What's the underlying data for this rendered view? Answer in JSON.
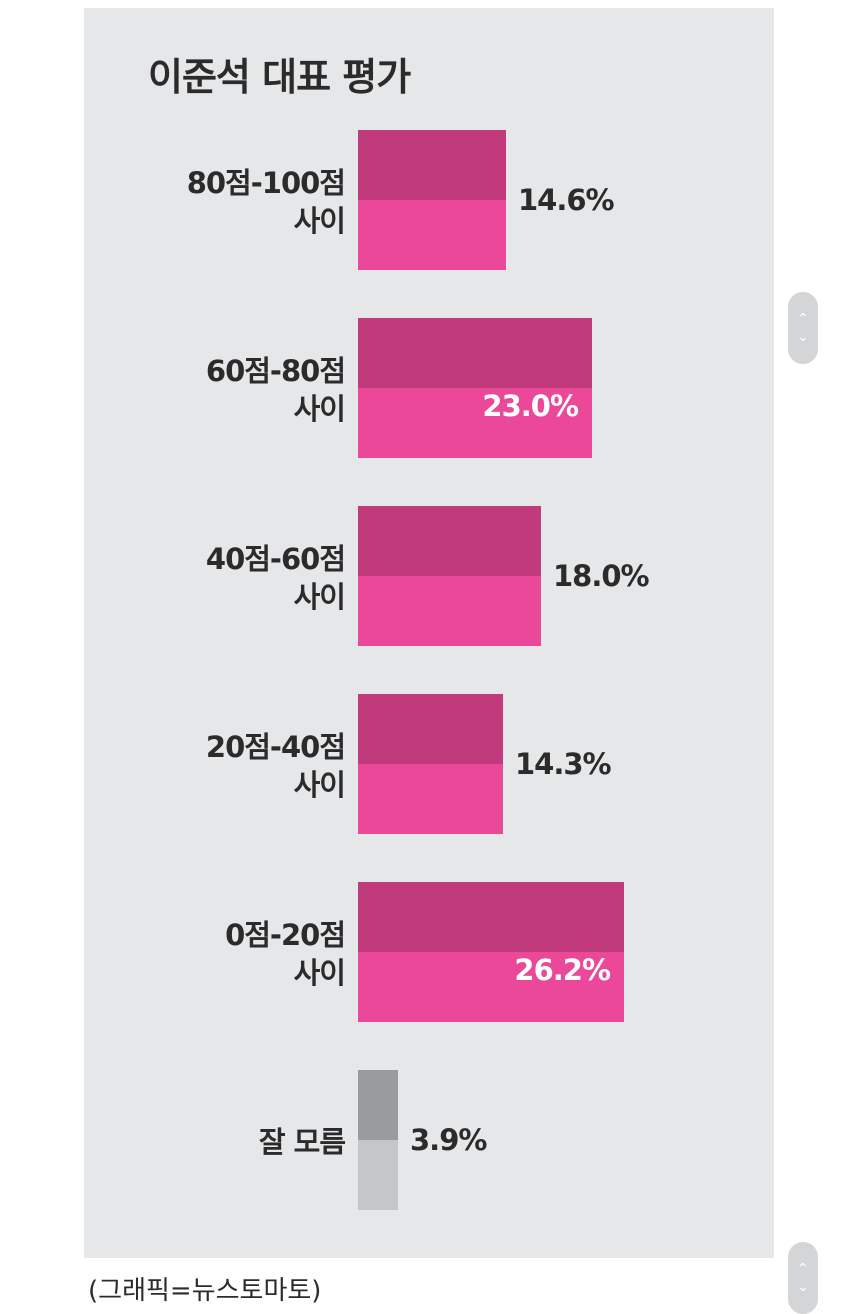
{
  "title": "이준석 대표 평가",
  "source_note": "(그래픽=뉴스토마토)",
  "colors": {
    "panel": "#e6e7e9",
    "bar_top": "#c13a7b",
    "bar_bottom": "#ec4899",
    "unknown_top": "#9a9b9f",
    "unknown_bottom": "#c5c6c9",
    "label_dark": "#2b2b2b",
    "label_light": "#ffffff"
  },
  "scroll_icons": {
    "up": "chevron-up-icon",
    "down": "chevron-down-icon"
  },
  "chart_data": {
    "type": "bar",
    "orientation": "horizontal",
    "title": "이준석 대표 평가",
    "categories": [
      "80점-100점\n사이",
      "60점-80점\n사이",
      "40점-60점\n사이",
      "20점-40점\n사이",
      "0점-20점\n사이",
      "잘 모름"
    ],
    "values": [
      14.6,
      23.0,
      18.0,
      14.3,
      26.2,
      3.9
    ],
    "value_labels": [
      "14.6%",
      "23.0%",
      "18.0%",
      "14.3%",
      "26.2%",
      "3.9%"
    ],
    "unit": "%",
    "grid": false,
    "legend": "none"
  }
}
